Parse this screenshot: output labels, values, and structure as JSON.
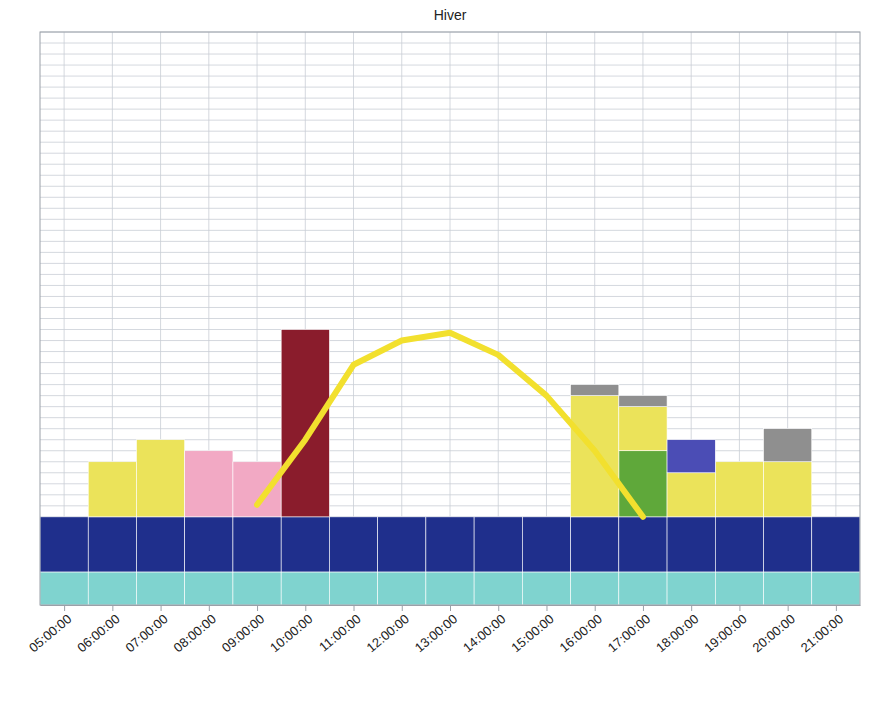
{
  "chart_data": {
    "type": "bar",
    "title": "Hiver",
    "x": [
      5,
      6,
      7,
      8,
      9,
      10,
      11,
      12,
      13,
      14,
      15,
      16,
      17,
      18,
      19,
      20,
      21
    ],
    "xlim": [
      4.5,
      21.5
    ],
    "xticks": [
      {
        "value": 5,
        "label": "05:00:00"
      },
      {
        "value": 6,
        "label": "06:00:00"
      },
      {
        "value": 7,
        "label": "07:00:00"
      },
      {
        "value": 8,
        "label": "08:00:00"
      },
      {
        "value": 9,
        "label": "09:00:00"
      },
      {
        "value": 10,
        "label": "10:00:00"
      },
      {
        "value": 11,
        "label": "11:00:00"
      },
      {
        "value": 12,
        "label": "12:00:00"
      },
      {
        "value": 13,
        "label": "13:00:00"
      },
      {
        "value": 14,
        "label": "14:00:00"
      },
      {
        "value": 15,
        "label": "15:00:00"
      },
      {
        "value": 16,
        "label": "16:00:00"
      },
      {
        "value": 17,
        "label": "17:00:00"
      },
      {
        "value": 18,
        "label": "18:00:00"
      },
      {
        "value": 19,
        "label": "19:00:00"
      },
      {
        "value": 20,
        "label": "20:00:00"
      },
      {
        "value": 21,
        "label": "21:00:00"
      }
    ],
    "ylim": [
      0,
      52
    ],
    "yticks": [
      0,
      1,
      2,
      3,
      4,
      5,
      6,
      7,
      8,
      9,
      10,
      11,
      12,
      13,
      14,
      15,
      16,
      17,
      18,
      19,
      20,
      21,
      22,
      23,
      24,
      25,
      26,
      27,
      28,
      29,
      30,
      31,
      32,
      33,
      34,
      35,
      36,
      37,
      38,
      39,
      40,
      41,
      42,
      43,
      44,
      45,
      46,
      47,
      48,
      49,
      50,
      51,
      52
    ],
    "grid": true,
    "stacked": true,
    "tick_labels": "x",
    "series": [
      {
        "type": "bar",
        "color": "#7fd3cf",
        "values": [
          3,
          3,
          3,
          3,
          3,
          3,
          3,
          3,
          3,
          3,
          3,
          3,
          3,
          3,
          3,
          3,
          3
        ]
      },
      {
        "type": "bar",
        "color": "#1f2f8c",
        "values": [
          5,
          5,
          5,
          5,
          5,
          5,
          5,
          5,
          5,
          5,
          5,
          5,
          5,
          5,
          5,
          5,
          5
        ]
      },
      {
        "type": "bar",
        "color": "#5fa83a",
        "values": [
          null,
          null,
          null,
          null,
          null,
          null,
          null,
          null,
          null,
          null,
          null,
          null,
          6,
          null,
          null,
          null,
          null
        ]
      },
      {
        "type": "bar",
        "color": "#ebe35a",
        "values": [
          null,
          5,
          7,
          null,
          null,
          null,
          null,
          null,
          null,
          null,
          null,
          11,
          4,
          4,
          5,
          5,
          null
        ]
      },
      {
        "type": "bar",
        "color": "#f2a9c4",
        "values": [
          null,
          null,
          null,
          6,
          5,
          null,
          null,
          null,
          null,
          null,
          null,
          null,
          null,
          null,
          null,
          null,
          null
        ]
      },
      {
        "type": "bar",
        "color": "#8a1c2c",
        "values": [
          null,
          null,
          null,
          null,
          null,
          17,
          null,
          null,
          null,
          null,
          null,
          null,
          null,
          null,
          null,
          null,
          null
        ]
      },
      {
        "type": "bar",
        "color": "#4b4db5",
        "values": [
          null,
          null,
          null,
          null,
          null,
          null,
          null,
          null,
          null,
          null,
          null,
          null,
          null,
          3,
          null,
          null,
          null
        ]
      },
      {
        "type": "bar",
        "color": "#8f8f8f",
        "values": [
          null,
          null,
          null,
          null,
          null,
          null,
          null,
          null,
          null,
          null,
          null,
          1,
          1,
          null,
          null,
          3,
          null
        ]
      },
      {
        "type": "line",
        "color": "#f2e02e",
        "values": [
          null,
          null,
          null,
          null,
          9.1,
          15,
          21.8,
          24,
          24.7,
          22.7,
          19,
          14,
          8,
          null,
          null,
          null,
          null
        ]
      }
    ]
  }
}
